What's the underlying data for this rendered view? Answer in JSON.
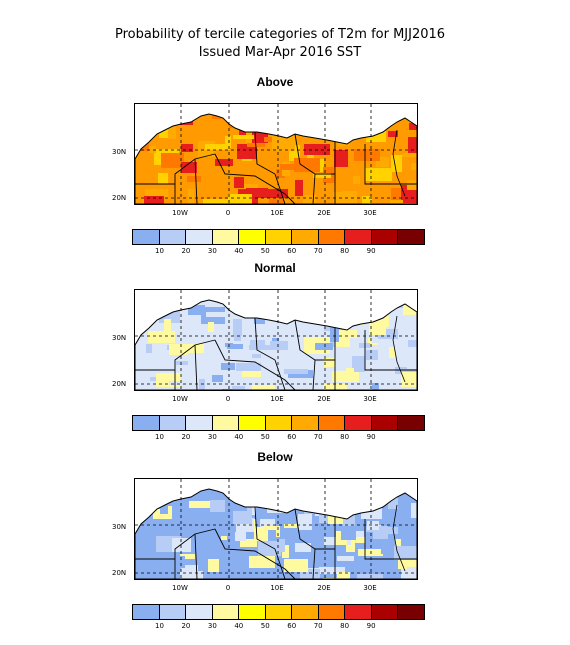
{
  "title": {
    "line1": "Probability of tercile categories of T2m for MJJ2016",
    "line2": "Issued Mar-Apr 2016 SST"
  },
  "colorbar": {
    "colors": [
      "#8aaff0",
      "#b7cdf5",
      "#dce7fa",
      "#fffaa0",
      "#ffff00",
      "#ffd200",
      "#ffaa00",
      "#ff7800",
      "#e61e1e",
      "#aa0000",
      "#780000"
    ],
    "labels": [
      "10",
      "20",
      "30",
      "40",
      "50",
      "60",
      "70",
      "80",
      "90"
    ]
  },
  "axes": {
    "lat_labels": [
      "30N",
      "20N"
    ],
    "lon_labels": [
      "10W",
      "0",
      "10E",
      "20E",
      "30E"
    ]
  },
  "panels": [
    {
      "id": "above",
      "title": "Above",
      "dominant_category": "above",
      "palette": [
        "#ff9a00",
        "#ff7800",
        "#ffaa00",
        "#e61e1e",
        "#ffd200"
      ]
    },
    {
      "id": "normal",
      "title": "Normal",
      "dominant_category": "normal",
      "palette": [
        "#dce7fa",
        "#b7cdf5",
        "#dce7fa",
        "#fffaa0",
        "#8aaff0"
      ]
    },
    {
      "id": "below",
      "title": "Below",
      "dominant_category": "below",
      "palette": [
        "#8aaff0",
        "#8aaff0",
        "#b7cdf5",
        "#dce7fa",
        "#fffaa0"
      ]
    }
  ]
}
